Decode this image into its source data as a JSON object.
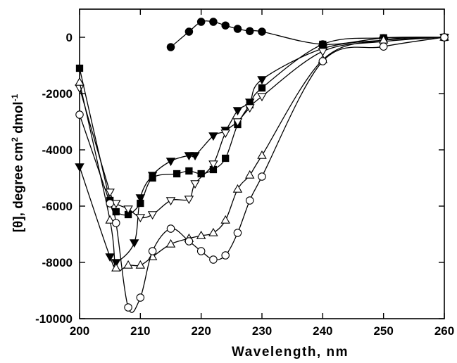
{
  "chart_data": {
    "type": "line",
    "xlabel": "Wavelength, nm",
    "ylabel_parts": [
      "[θ], degree cm",
      "2",
      " dmol",
      "-1"
    ],
    "xlim": [
      200,
      260
    ],
    "ylim": [
      -10000,
      1000
    ],
    "xticks": [
      200,
      210,
      220,
      230,
      240,
      250,
      260
    ],
    "yticks": [
      -10000,
      -8000,
      -6000,
      -4000,
      -2000,
      0
    ],
    "grid": false,
    "legend": "none",
    "series": [
      {
        "marker": "filled-circle",
        "x": [
          215,
          218,
          220,
          222,
          224,
          226,
          228,
          230,
          240,
          250,
          260
        ],
        "y": [
          -350,
          200,
          550,
          550,
          420,
          300,
          220,
          200,
          -250,
          -30,
          0
        ]
      },
      {
        "marker": "filled-square",
        "x": [
          200,
          205,
          206,
          208,
          210,
          212,
          216,
          218,
          220,
          222,
          224,
          226,
          228,
          230,
          240,
          250,
          260
        ],
        "y": [
          -1100,
          -5800,
          -6200,
          -6300,
          -5900,
          -5000,
          -4850,
          -4750,
          -4850,
          -4700,
          -4300,
          -3100,
          -2400,
          -1800,
          -250,
          -20,
          0
        ]
      },
      {
        "marker": "filled-triangle-down",
        "x": [
          200,
          205,
          206,
          209,
          210,
          212,
          215,
          218,
          219,
          222,
          224,
          226,
          228,
          230,
          240,
          250,
          260
        ],
        "y": [
          -4600,
          -7800,
          -8000,
          -7300,
          -5700,
          -4900,
          -4400,
          -4200,
          -4200,
          -3500,
          -3300,
          -2600,
          -2300,
          -1500,
          -400,
          -100,
          0
        ]
      },
      {
        "marker": "open-triangle-down",
        "x": [
          200,
          205,
          206,
          208,
          210,
          212,
          215,
          218,
          219,
          222,
          224,
          226,
          228,
          230,
          240,
          250,
          260
        ],
        "y": [
          -1800,
          -5500,
          -5900,
          -6100,
          -6400,
          -6300,
          -5800,
          -5750,
          -5200,
          -4500,
          -3400,
          -3000,
          -2500,
          -2100,
          -500,
          -150,
          0
        ]
      },
      {
        "marker": "open-triangle-up",
        "x": [
          200,
          205,
          206,
          208,
          210,
          212,
          215,
          218,
          220,
          222,
          224,
          226,
          228,
          230,
          240,
          250,
          260
        ],
        "y": [
          -1600,
          -6500,
          -8200,
          -8100,
          -8100,
          -7800,
          -7350,
          -7150,
          -7050,
          -6950,
          -6500,
          -5400,
          -4900,
          -4200,
          -800,
          -100,
          0
        ]
      },
      {
        "marker": "open-circle",
        "x": [
          200,
          205,
          206,
          208,
          210,
          212,
          215,
          218,
          220,
          222,
          224,
          226,
          228,
          230,
          240,
          250,
          260
        ],
        "y": [
          -2750,
          -5900,
          -6600,
          -9600,
          -9250,
          -7600,
          -6800,
          -7250,
          -7600,
          -7900,
          -7750,
          -6950,
          -5800,
          -4950,
          -850,
          -330,
          0
        ]
      }
    ]
  }
}
